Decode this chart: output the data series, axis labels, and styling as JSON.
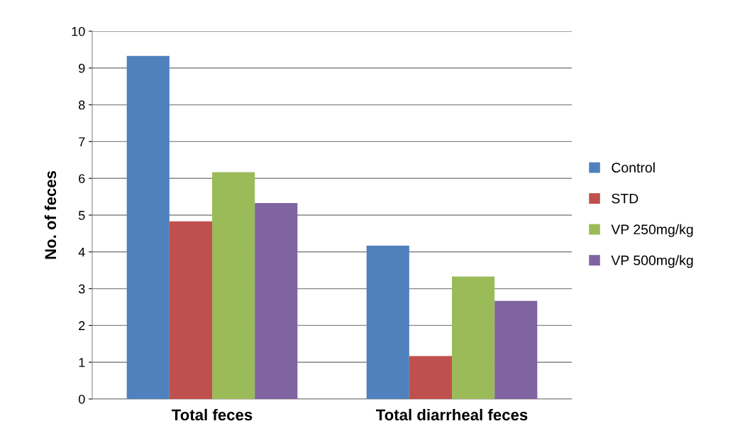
{
  "chart_data": {
    "type": "bar",
    "ylabel": "No. of feces",
    "categories": [
      "Total feces",
      "Total diarrheal feces"
    ],
    "series": [
      {
        "name": "Control",
        "color": "#4f81bd",
        "values": [
          9.33,
          4.17
        ]
      },
      {
        "name": "STD",
        "color": "#c0504d",
        "values": [
          4.83,
          1.17
        ]
      },
      {
        "name": "VP 250mg/kg",
        "color": "#9bbb59",
        "values": [
          6.17,
          3.33
        ]
      },
      {
        "name": "VP 500mg/kg",
        "color": "#8064a2",
        "values": [
          5.33,
          2.67
        ]
      }
    ],
    "ylim": [
      0,
      10
    ],
    "yticks": [
      0,
      1,
      2,
      3,
      4,
      5,
      6,
      7,
      8,
      9,
      10
    ],
    "grid": "y",
    "legend": "right"
  }
}
